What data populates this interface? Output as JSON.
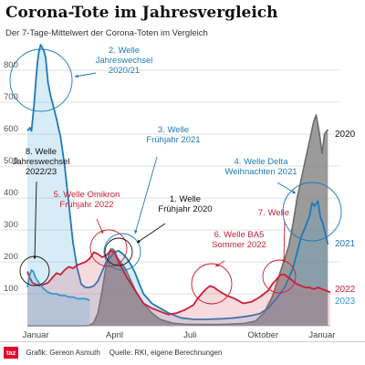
{
  "header": {
    "title": "Corona-Tote im Jahresvergleich",
    "subtitle": "Der 7-Tage-Mittelwert der Corona-Toten im Vergleich"
  },
  "footer": {
    "logo": "taz",
    "credit": "Grafik: Gereon Asmuth",
    "source": "Quelle: RKI, eigene Berechnungen"
  },
  "colors": {
    "2020": "#6b6b6b",
    "2021": "#1e7ab8",
    "2022": "#cc1f36",
    "2023": "#3399cc",
    "background_bg": "#ffffff",
    "annotation_2021": "#1e7ab8",
    "annotation_2022": "#cc1f36",
    "annotation_2020": "#111111"
  },
  "chart_data": {
    "type": "area",
    "title": "Corona-Tote im Jahresvergleich",
    "subtitle": "Der 7-Tage-Mittelwert der Corona-Toten im Vergleich",
    "xlabel": "",
    "ylabel": "",
    "xlim": [
      0,
      365
    ],
    "ylim": [
      0,
      900
    ],
    "x_ticks": [
      {
        "label": "Januar",
        "day": 10
      },
      {
        "label": "April",
        "day": 105
      },
      {
        "label": "Juli",
        "day": 196
      },
      {
        "label": "Oktober",
        "day": 284
      },
      {
        "label": "Januar",
        "day": 355
      }
    ],
    "y_ticks": [
      100,
      200,
      300,
      400,
      500,
      600,
      700,
      800
    ],
    "grid": true,
    "series": [
      {
        "name": "2020",
        "color_key": "2020",
        "points": [
          [
            0,
            0
          ],
          [
            70,
            0
          ],
          [
            75,
            1
          ],
          [
            80,
            10
          ],
          [
            85,
            40
          ],
          [
            90,
            110
          ],
          [
            95,
            190
          ],
          [
            100,
            240
          ],
          [
            103,
            240
          ],
          [
            105,
            235
          ],
          [
            108,
            215
          ],
          [
            112,
            200
          ],
          [
            118,
            180
          ],
          [
            125,
            140
          ],
          [
            132,
            100
          ],
          [
            140,
            70
          ],
          [
            150,
            40
          ],
          [
            160,
            20
          ],
          [
            175,
            8
          ],
          [
            190,
            5
          ],
          [
            205,
            4
          ],
          [
            230,
            4
          ],
          [
            260,
            7
          ],
          [
            275,
            15
          ],
          [
            285,
            40
          ],
          [
            295,
            90
          ],
          [
            305,
            170
          ],
          [
            315,
            250
          ],
          [
            320,
            320
          ],
          [
            325,
            400
          ],
          [
            330,
            460
          ],
          [
            335,
            520
          ],
          [
            340,
            580
          ],
          [
            345,
            640
          ],
          [
            348,
            660
          ],
          [
            352,
            600
          ],
          [
            355,
            540
          ],
          [
            358,
            600
          ],
          [
            362,
            615
          ]
        ]
      },
      {
        "name": "2021",
        "color_key": "2021",
        "points": [
          [
            0,
            610
          ],
          [
            3,
            620
          ],
          [
            5,
            610
          ],
          [
            8,
            690
          ],
          [
            10,
            760
          ],
          [
            12,
            820
          ],
          [
            14,
            860
          ],
          [
            16,
            880
          ],
          [
            18,
            870
          ],
          [
            20,
            860
          ],
          [
            22,
            840
          ],
          [
            25,
            760
          ],
          [
            28,
            720
          ],
          [
            30,
            700
          ],
          [
            35,
            650
          ],
          [
            40,
            590
          ],
          [
            45,
            500
          ],
          [
            50,
            380
          ],
          [
            55,
            260
          ],
          [
            60,
            180
          ],
          [
            65,
            130
          ],
          [
            70,
            120
          ],
          [
            75,
            120
          ],
          [
            80,
            125
          ],
          [
            85,
            140
          ],
          [
            90,
            170
          ],
          [
            95,
            200
          ],
          [
            100,
            215
          ],
          [
            105,
            230
          ],
          [
            110,
            235
          ],
          [
            115,
            225
          ],
          [
            120,
            210
          ],
          [
            125,
            190
          ],
          [
            130,
            165
          ],
          [
            135,
            130
          ],
          [
            140,
            100
          ],
          [
            145,
            85
          ],
          [
            150,
            70
          ],
          [
            160,
            55
          ],
          [
            170,
            40
          ],
          [
            185,
            25
          ],
          [
            200,
            20
          ],
          [
            215,
            20
          ],
          [
            235,
            22
          ],
          [
            250,
            25
          ],
          [
            260,
            28
          ],
          [
            270,
            32
          ],
          [
            280,
            38
          ],
          [
            290,
            55
          ],
          [
            300,
            85
          ],
          [
            310,
            120
          ],
          [
            320,
            180
          ],
          [
            325,
            230
          ],
          [
            330,
            280
          ],
          [
            335,
            310
          ],
          [
            340,
            345
          ],
          [
            343,
            385
          ],
          [
            346,
            375
          ],
          [
            350,
            390
          ],
          [
            353,
            340
          ],
          [
            356,
            320
          ],
          [
            359,
            290
          ],
          [
            362,
            255
          ]
        ]
      },
      {
        "name": "2022",
        "color_key": "2022",
        "points": [
          [
            0,
            170
          ],
          [
            3,
            150
          ],
          [
            6,
            135
          ],
          [
            10,
            130
          ],
          [
            15,
            125
          ],
          [
            20,
            130
          ],
          [
            25,
            135
          ],
          [
            30,
            150
          ],
          [
            35,
            165
          ],
          [
            40,
            160
          ],
          [
            45,
            175
          ],
          [
            50,
            185
          ],
          [
            55,
            180
          ],
          [
            60,
            190
          ],
          [
            65,
            195
          ],
          [
            70,
            200
          ],
          [
            75,
            210
          ],
          [
            80,
            230
          ],
          [
            85,
            225
          ],
          [
            90,
            215
          ],
          [
            95,
            220
          ],
          [
            100,
            235
          ],
          [
            105,
            230
          ],
          [
            110,
            200
          ],
          [
            115,
            175
          ],
          [
            120,
            150
          ],
          [
            125,
            130
          ],
          [
            130,
            110
          ],
          [
            135,
            90
          ],
          [
            140,
            70
          ],
          [
            150,
            55
          ],
          [
            160,
            45
          ],
          [
            170,
            35
          ],
          [
            180,
            40
          ],
          [
            190,
            50
          ],
          [
            200,
            65
          ],
          [
            205,
            85
          ],
          [
            210,
            100
          ],
          [
            215,
            115
          ],
          [
            220,
            125
          ],
          [
            225,
            120
          ],
          [
            230,
            110
          ],
          [
            240,
            95
          ],
          [
            250,
            85
          ],
          [
            260,
            70
          ],
          [
            270,
            75
          ],
          [
            280,
            90
          ],
          [
            290,
            110
          ],
          [
            295,
            130
          ],
          [
            300,
            145
          ],
          [
            305,
            160
          ],
          [
            310,
            160
          ],
          [
            315,
            150
          ],
          [
            320,
            140
          ],
          [
            325,
            130
          ],
          [
            330,
            125
          ],
          [
            335,
            120
          ],
          [
            340,
            120
          ],
          [
            345,
            115
          ],
          [
            350,
            120
          ],
          [
            355,
            115
          ],
          [
            360,
            110
          ],
          [
            365,
            105
          ]
        ]
      },
      {
        "name": "2023",
        "color_key": "2023",
        "points": [
          [
            0,
            120
          ],
          [
            3,
            160
          ],
          [
            5,
            175
          ],
          [
            7,
            170
          ],
          [
            10,
            150
          ],
          [
            15,
            130
          ],
          [
            20,
            115
          ],
          [
            25,
            105
          ],
          [
            30,
            100
          ],
          [
            35,
            100
          ],
          [
            40,
            95
          ],
          [
            45,
            95
          ],
          [
            50,
            90
          ],
          [
            55,
            90
          ],
          [
            60,
            85
          ],
          [
            65,
            85
          ],
          [
            70,
            85
          ],
          [
            75,
            80
          ]
        ]
      }
    ]
  },
  "annotations": [
    {
      "lines": [
        "2. Welle",
        "Jahreswechsel",
        "2020/21"
      ],
      "color_key": "annotation_2021"
    },
    {
      "lines": [
        "3. Welle",
        "Frühjahr 2021"
      ],
      "color_key": "annotation_2021"
    },
    {
      "lines": [
        "4. Welle Delta",
        "Weihnachten 2021"
      ],
      "color_key": "annotation_2021"
    },
    {
      "lines": [
        "8. Welle",
        "Jahreswechsel",
        "2022/23"
      ],
      "color_key": "annotation_2020"
    },
    {
      "lines": [
        "5. Welle Omikron",
        "Frühjahr 2022"
      ],
      "color_key": "annotation_2022"
    },
    {
      "lines": [
        "1. Welle",
        "Frühjahr 2020"
      ],
      "color_key": "annotation_2020"
    },
    {
      "lines": [
        "6. Welle BA5",
        "Sommer 2022"
      ],
      "color_key": "annotation_2022"
    },
    {
      "lines": [
        "7. Welle"
      ],
      "color_key": "annotation_2022"
    }
  ],
  "end_labels": [
    {
      "text": "2020",
      "color_key": "annotation_2020"
    },
    {
      "text": "2021",
      "color_key": "annotation_2021"
    },
    {
      "text": "2022",
      "color_key": "annotation_2022"
    },
    {
      "text": "2023",
      "color_key": "2023"
    }
  ]
}
